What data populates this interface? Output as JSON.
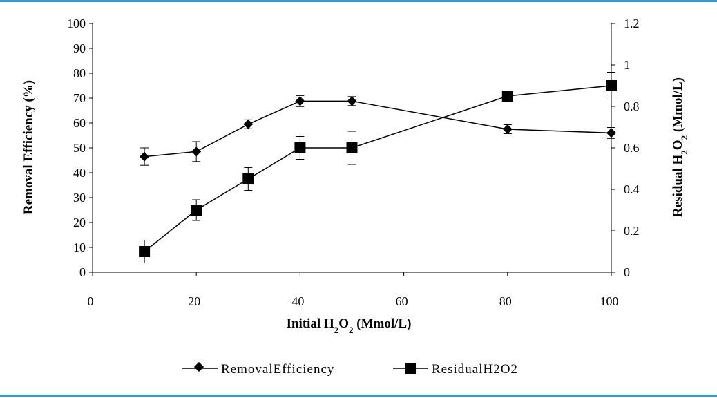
{
  "chart_data": {
    "type": "line",
    "xlabel": {
      "prefix": "Initial H",
      "sub1": "2",
      "mid": "O",
      "sub2": "2",
      "suffix": " (Mmol/L)"
    },
    "ylabel_left": "Removal Efficiency (%)",
    "ylabel_right": {
      "prefix": "Residual H",
      "sub1": "2",
      "mid": "O",
      "sub2": "2",
      "suffix": " (Mmol/L)"
    },
    "xlim": [
      0,
      100
    ],
    "ylim_left": [
      0,
      100
    ],
    "ylim_right": [
      0,
      1.2
    ],
    "x_ticks": [
      "0",
      "20",
      "40",
      "60",
      "80",
      "100"
    ],
    "y_left_ticks": [
      "0",
      "10",
      "20",
      "30",
      "40",
      "50",
      "60",
      "70",
      "80",
      "90",
      "100"
    ],
    "y_right_ticks": [
      "0",
      "0.2",
      "0.4",
      "0.6",
      "0.8",
      "1",
      "1.2"
    ],
    "grid": false,
    "legend_position": "bottom",
    "series": [
      {
        "name": "RemovalEfficiency",
        "axis": "left",
        "marker": "diamond",
        "x": [
          10,
          20,
          30,
          40,
          50,
          80,
          100
        ],
        "y": [
          46.5,
          48.5,
          59.5,
          68.8,
          68.8,
          57.5,
          56
        ],
        "error": [
          3.5,
          4,
          1.8,
          2.2,
          1.8,
          1.8,
          2.2
        ]
      },
      {
        "name": "ResidualH2O2",
        "axis": "right",
        "marker": "square",
        "x": [
          10,
          20,
          30,
          40,
          50,
          80,
          100
        ],
        "y": [
          0.1,
          0.3,
          0.45,
          0.6,
          0.6,
          0.85,
          0.9
        ],
        "error": [
          0.055,
          0.05,
          0.055,
          0.055,
          0.08,
          0.02,
          0.065
        ]
      }
    ]
  }
}
